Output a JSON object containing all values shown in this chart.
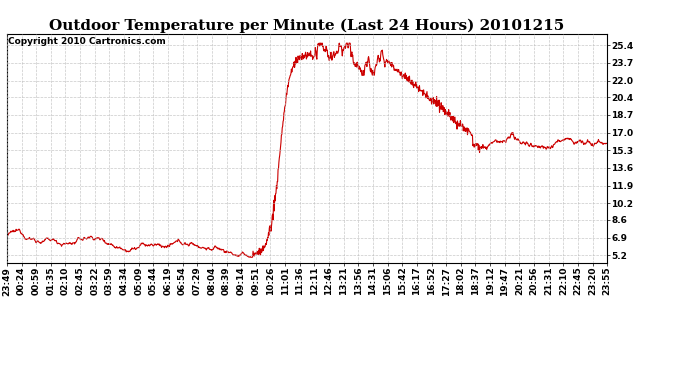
{
  "title": "Outdoor Temperature per Minute (Last 24 Hours) 20101215",
  "copyright_text": "Copyright 2010 Cartronics.com",
  "line_color": "#cc0000",
  "bg_color": "#ffffff",
  "plot_bg_color": "#ffffff",
  "grid_color": "#aaaaaa",
  "yticks_right": [
    5.2,
    6.9,
    8.6,
    10.2,
    11.9,
    13.6,
    15.3,
    17.0,
    18.7,
    20.4,
    22.0,
    23.7,
    25.4
  ],
  "ylim": [
    4.5,
    26.5
  ],
  "xtick_labels": [
    "23:49",
    "00:24",
    "00:59",
    "01:35",
    "02:10",
    "02:45",
    "03:22",
    "03:59",
    "04:34",
    "05:09",
    "05:44",
    "06:19",
    "06:54",
    "07:29",
    "08:04",
    "08:39",
    "09:14",
    "09:51",
    "10:26",
    "11:01",
    "11:36",
    "12:11",
    "12:46",
    "13:21",
    "13:56",
    "14:31",
    "15:06",
    "15:42",
    "16:17",
    "16:52",
    "17:27",
    "18:02",
    "18:37",
    "19:12",
    "19:47",
    "20:21",
    "20:56",
    "21:31",
    "22:10",
    "22:45",
    "23:20",
    "23:55"
  ],
  "title_fontsize": 11,
  "tick_fontsize": 6.5,
  "copyright_fontsize": 6.5,
  "line_width": 0.8
}
